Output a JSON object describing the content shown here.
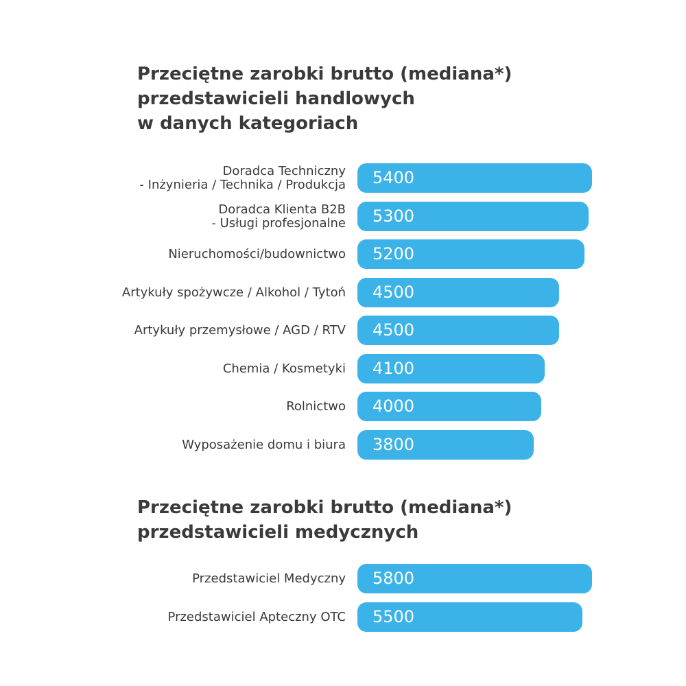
{
  "chart_data": [
    {
      "type": "bar",
      "orientation": "horizontal",
      "title_lines": [
        "Przeciętne zarobki brutto (mediana*)",
        "przedstawicieli handlowych",
        "w danych kategoriach"
      ],
      "categories": [
        [
          "Doradca Techniczny",
          "- Inżynieria / Technika / Produkcja"
        ],
        [
          "Doradca Klienta B2B",
          "- Usługi profesjonalne"
        ],
        [
          "Nieruchomości/budownictwo"
        ],
        [
          "Artykuły spożywcze / Alkohol / Tytoń"
        ],
        [
          "Artykuły przemysłowe / AGD / RTV"
        ],
        [
          "Chemia / Kosmetyki"
        ],
        [
          "Rolnictwo"
        ],
        [
          "Wyposażenie domu i biura"
        ]
      ],
      "values": [
        5400,
        5300,
        5200,
        4500,
        4500,
        4100,
        4000,
        3800
      ],
      "bar_color": "#3bb3e8",
      "grid": false,
      "legend": "none"
    },
    {
      "type": "bar",
      "orientation": "horizontal",
      "title_lines": [
        "Przeciętne zarobki brutto (mediana*)",
        "przedstawicieli medycznych"
      ],
      "categories": [
        [
          "Przedstawiciel Medyczny"
        ],
        [
          "Przedstawiciel Apteczny OTC"
        ]
      ],
      "values": [
        5800,
        5500
      ],
      "bar_color": "#3bb3e8",
      "grid": false,
      "legend": "none"
    }
  ]
}
